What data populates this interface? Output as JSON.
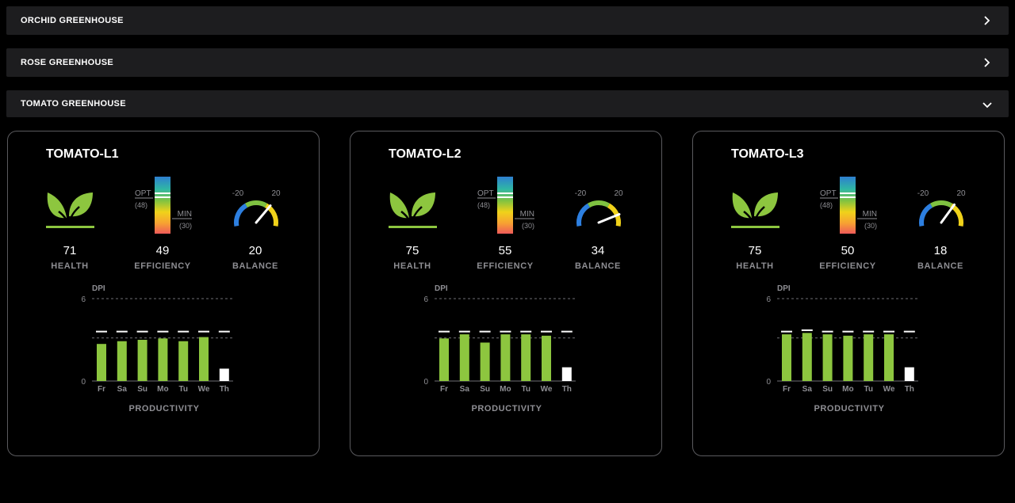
{
  "accordions": [
    {
      "label": "ORCHID GREENHOUSE",
      "expanded": false
    },
    {
      "label": "ROSE GREENHOUSE",
      "expanded": false
    },
    {
      "label": "TOMATO GREENHOUSE",
      "expanded": true
    }
  ],
  "labels": {
    "health": "HEALTH",
    "efficiency": "EFFICIENCY",
    "balance": "BALANCE",
    "opt": "OPT",
    "opt_value": "(48)",
    "min": "MIN",
    "min_value": "(30)",
    "gauge_min": "-20",
    "gauge_max": "20",
    "dpi": "DPI",
    "productivity": "PRODUCTIVITY",
    "y_max": "6",
    "y_min": "0"
  },
  "colors": {
    "leaf": "#8dc63f",
    "bar": "#8dc63f",
    "today_bar": "#ffffff"
  },
  "cards": [
    {
      "title": "TOMATO-L1",
      "health": "71",
      "efficiency": "49",
      "balance": "20",
      "balance_value": 20,
      "chart_data": {
        "type": "bar",
        "categories": [
          "Fr",
          "Sa",
          "Su",
          "Mo",
          "Tu",
          "We",
          "Th"
        ],
        "values": [
          2.7,
          2.9,
          3.0,
          3.1,
          2.9,
          3.2,
          0.9
        ],
        "targets": [
          3.6,
          3.6,
          3.6,
          3.6,
          3.6,
          3.6,
          3.6
        ],
        "ylim": [
          0,
          6
        ],
        "ylabel": "DPI",
        "xlabel": "PRODUCTIVITY"
      }
    },
    {
      "title": "TOMATO-L2",
      "health": "75",
      "efficiency": "55",
      "balance": "34",
      "balance_value": 34,
      "chart_data": {
        "type": "bar",
        "categories": [
          "Fr",
          "Sa",
          "Su",
          "Mo",
          "Tu",
          "We",
          "Th"
        ],
        "values": [
          3.1,
          3.4,
          2.8,
          3.4,
          3.4,
          3.3,
          1.0
        ],
        "targets": [
          3.6,
          3.6,
          3.6,
          3.6,
          3.6,
          3.6,
          3.6
        ],
        "ylim": [
          0,
          6
        ],
        "ylabel": "DPI",
        "xlabel": "PRODUCTIVITY"
      }
    },
    {
      "title": "TOMATO-L3",
      "health": "75",
      "efficiency": "50",
      "balance": "18",
      "balance_value": 18,
      "chart_data": {
        "type": "bar",
        "categories": [
          "Fr",
          "Sa",
          "Su",
          "Mo",
          "Tu",
          "We",
          "Th"
        ],
        "values": [
          3.4,
          3.5,
          3.4,
          3.3,
          3.4,
          3.4,
          1.0
        ],
        "targets": [
          3.6,
          3.7,
          3.6,
          3.6,
          3.6,
          3.6,
          3.6
        ],
        "ylim": [
          0,
          6
        ],
        "ylabel": "DPI",
        "xlabel": "PRODUCTIVITY"
      }
    }
  ]
}
